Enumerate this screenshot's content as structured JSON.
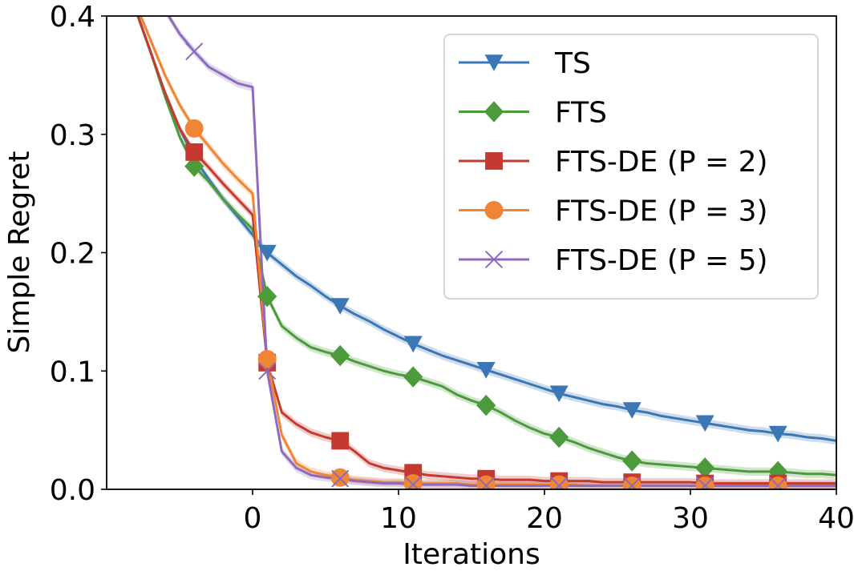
{
  "chart_data": {
    "type": "line",
    "xlabel": "Iterations",
    "ylabel": "Simple Regret",
    "xlim": [
      -10,
      40
    ],
    "ylim": [
      0.0,
      0.4
    ],
    "x_ticks": [
      0,
      10,
      20,
      30,
      40
    ],
    "x_tick_labels": [
      "0",
      "10",
      "20",
      "30",
      "40"
    ],
    "y_ticks": [
      0.0,
      0.1,
      0.2,
      0.3,
      0.4
    ],
    "y_tick_labels": [
      "0.0",
      "0.1",
      "0.2",
      "0.3",
      "0.4"
    ],
    "grid": false,
    "legend_position": "top-right",
    "series": [
      {
        "name": "TS",
        "legend_label": "TS",
        "color": "#3a77b4",
        "marker": "triangle-down",
        "x": [
          -8,
          -7,
          -6,
          -5,
          -4,
          -3,
          -2,
          -1,
          0,
          1,
          2,
          3,
          4,
          5,
          6,
          7,
          8,
          9,
          10,
          11,
          12,
          13,
          14,
          15,
          16,
          17,
          18,
          19,
          20,
          21,
          22,
          23,
          24,
          25,
          26,
          27,
          28,
          29,
          30,
          31,
          32,
          33,
          34,
          35,
          36,
          37,
          38,
          39,
          40
        ],
        "y": [
          0.405,
          0.37,
          0.335,
          0.305,
          0.28,
          0.262,
          0.245,
          0.23,
          0.215,
          0.2,
          0.19,
          0.18,
          0.172,
          0.163,
          0.155,
          0.148,
          0.142,
          0.135,
          0.129,
          0.123,
          0.118,
          0.113,
          0.109,
          0.105,
          0.101,
          0.097,
          0.093,
          0.089,
          0.085,
          0.081,
          0.078,
          0.075,
          0.072,
          0.07,
          0.067,
          0.065,
          0.062,
          0.06,
          0.058,
          0.056,
          0.054,
          0.052,
          0.05,
          0.049,
          0.047,
          0.046,
          0.044,
          0.043,
          0.041
        ],
        "marker_x": [
          1,
          6,
          11,
          16,
          21,
          26,
          31,
          36
        ],
        "marker_y": [
          0.2,
          0.155,
          0.123,
          0.101,
          0.081,
          0.067,
          0.056,
          0.047
        ]
      },
      {
        "name": "FTS",
        "legend_label": "FTS",
        "color": "#4b9b3c",
        "marker": "diamond",
        "x": [
          -8,
          -7,
          -6,
          -5,
          -4,
          -3,
          -2,
          -1,
          0,
          1,
          2,
          3,
          4,
          5,
          6,
          7,
          8,
          9,
          10,
          11,
          12,
          13,
          14,
          15,
          16,
          17,
          18,
          19,
          20,
          21,
          22,
          23,
          24,
          25,
          26,
          27,
          28,
          29,
          30,
          31,
          32,
          33,
          34,
          35,
          36,
          37,
          38,
          39,
          40
        ],
        "y": [
          0.405,
          0.37,
          0.332,
          0.298,
          0.273,
          0.26,
          0.245,
          0.232,
          0.22,
          0.163,
          0.138,
          0.128,
          0.12,
          0.116,
          0.113,
          0.108,
          0.104,
          0.1,
          0.097,
          0.095,
          0.091,
          0.087,
          0.08,
          0.075,
          0.071,
          0.065,
          0.058,
          0.052,
          0.047,
          0.044,
          0.04,
          0.035,
          0.031,
          0.027,
          0.024,
          0.022,
          0.021,
          0.02,
          0.019,
          0.018,
          0.017,
          0.016,
          0.015,
          0.015,
          0.015,
          0.014,
          0.013,
          0.013,
          0.012
        ],
        "marker_x": [
          -4,
          1,
          6,
          11,
          16,
          21,
          26,
          31,
          36
        ],
        "marker_y": [
          0.273,
          0.163,
          0.113,
          0.095,
          0.071,
          0.044,
          0.024,
          0.018,
          0.015
        ]
      },
      {
        "name": "FTS-DE (P = 2)",
        "legend_label": "FTS-DE (P = 2)",
        "color": "#c43a31",
        "marker": "square",
        "x": [
          -8,
          -7,
          -6,
          -5,
          -4,
          -3,
          -2,
          -1,
          0,
          1,
          2,
          3,
          4,
          5,
          6,
          7,
          8,
          9,
          10,
          11,
          12,
          13,
          14,
          15,
          16,
          17,
          18,
          19,
          20,
          21,
          22,
          23,
          24,
          25,
          26,
          27,
          28,
          29,
          30,
          31,
          32,
          33,
          34,
          35,
          36,
          37,
          38,
          39,
          40
        ],
        "y": [
          0.405,
          0.37,
          0.335,
          0.305,
          0.285,
          0.272,
          0.258,
          0.245,
          0.232,
          0.107,
          0.065,
          0.055,
          0.048,
          0.044,
          0.041,
          0.032,
          0.022,
          0.018,
          0.016,
          0.014,
          0.012,
          0.011,
          0.01,
          0.009,
          0.009,
          0.008,
          0.008,
          0.008,
          0.007,
          0.007,
          0.007,
          0.007,
          0.006,
          0.006,
          0.006,
          0.006,
          0.006,
          0.006,
          0.006,
          0.005,
          0.005,
          0.005,
          0.005,
          0.005,
          0.005,
          0.005,
          0.005,
          0.005,
          0.005
        ],
        "marker_x": [
          -4,
          1,
          6,
          11,
          16,
          21,
          26,
          31,
          36
        ],
        "marker_y": [
          0.285,
          0.107,
          0.041,
          0.014,
          0.009,
          0.007,
          0.006,
          0.005,
          0.005
        ]
      },
      {
        "name": "FTS-DE (P = 3)",
        "legend_label": "FTS-DE (P = 3)",
        "color": "#ef8535",
        "marker": "circle",
        "x": [
          -8,
          -7,
          -6,
          -5,
          -4,
          -3,
          -2,
          -1,
          0,
          1,
          2,
          3,
          4,
          5,
          6,
          7,
          8,
          9,
          10,
          11,
          12,
          13,
          14,
          15,
          16,
          17,
          18,
          19,
          20,
          21,
          22,
          23,
          24,
          25,
          26,
          27,
          28,
          29,
          30,
          31,
          32,
          33,
          34,
          35,
          36,
          37,
          38,
          39,
          40
        ],
        "y": [
          0.41,
          0.38,
          0.35,
          0.325,
          0.305,
          0.29,
          0.275,
          0.262,
          0.25,
          0.11,
          0.046,
          0.022,
          0.015,
          0.012,
          0.01,
          0.008,
          0.007,
          0.006,
          0.006,
          0.005,
          0.005,
          0.005,
          0.005,
          0.004,
          0.004,
          0.004,
          0.004,
          0.004,
          0.004,
          0.004,
          0.004,
          0.003,
          0.003,
          0.003,
          0.003,
          0.003,
          0.003,
          0.003,
          0.003,
          0.003,
          0.003,
          0.003,
          0.003,
          0.003,
          0.003,
          0.003,
          0.003,
          0.003,
          0.003
        ],
        "marker_x": [
          -4,
          1,
          6,
          11,
          16,
          21,
          26,
          31,
          36
        ],
        "marker_y": [
          0.305,
          0.11,
          0.01,
          0.005,
          0.004,
          0.004,
          0.003,
          0.003,
          0.003
        ]
      },
      {
        "name": "FTS-DE (P = 5)",
        "legend_label": "FTS-DE (P = 5)",
        "color": "#8c6bbd",
        "marker": "x",
        "x": [
          -6,
          -5,
          -4,
          -3,
          -2,
          -1,
          0,
          1,
          2,
          3,
          4,
          5,
          6,
          7,
          8,
          9,
          10,
          11,
          12,
          13,
          14,
          15,
          16,
          17,
          18,
          19,
          20,
          21,
          22,
          23,
          24,
          25,
          26,
          27,
          28,
          29,
          30,
          31,
          32,
          33,
          34,
          35,
          36,
          37,
          38,
          39,
          40
        ],
        "y": [
          0.405,
          0.385,
          0.37,
          0.357,
          0.35,
          0.343,
          0.34,
          0.1,
          0.032,
          0.018,
          0.012,
          0.01,
          0.009,
          0.007,
          0.006,
          0.005,
          0.005,
          0.004,
          0.004,
          0.004,
          0.004,
          0.003,
          0.003,
          0.003,
          0.003,
          0.003,
          0.003,
          0.003,
          0.003,
          0.003,
          0.003,
          0.003,
          0.003,
          0.003,
          0.003,
          0.003,
          0.003,
          0.003,
          0.003,
          0.003,
          0.003,
          0.003,
          0.003,
          0.003,
          0.003,
          0.003,
          0.003
        ],
        "marker_x": [
          -4,
          1,
          6,
          11,
          16,
          21,
          26,
          31,
          36
        ],
        "marker_y": [
          0.37,
          0.1,
          0.009,
          0.004,
          0.003,
          0.003,
          0.003,
          0.003,
          0.003
        ]
      }
    ]
  }
}
